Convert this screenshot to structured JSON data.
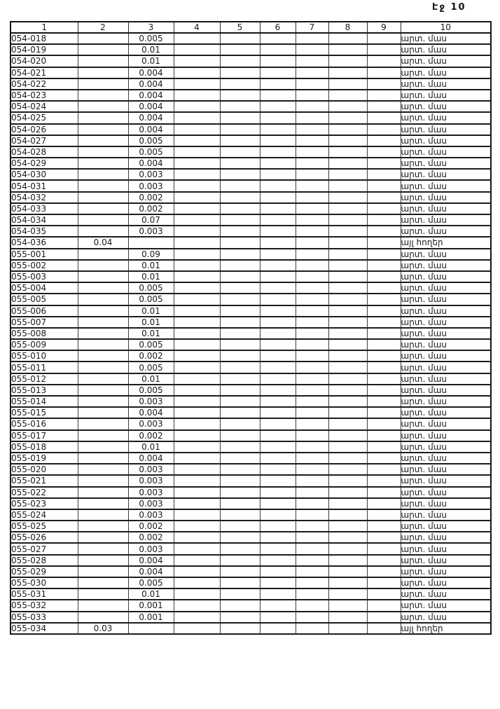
{
  "page": {
    "header_label": "Էջ 10"
  },
  "table": {
    "columns": [
      "1",
      "2",
      "3",
      "4",
      "5",
      "6",
      "7",
      "8",
      "9",
      "10"
    ],
    "rows": [
      {
        "c1": "054-018",
        "c3": "0.005",
        "c10": "արտ. մաս"
      },
      {
        "c1": "054-019",
        "c3": "0.01",
        "c10": "արտ. մաս"
      },
      {
        "c1": "054-020",
        "c3": "0.01",
        "c10": "արտ. մաս"
      },
      {
        "c1": "054-021",
        "c3": "0.004",
        "c10": "արտ. մաս"
      },
      {
        "c1": "054-022",
        "c3": "0.004",
        "c10": "արտ. մաս"
      },
      {
        "c1": "054-023",
        "c3": "0.004",
        "c10": "արտ. մաս"
      },
      {
        "c1": "054-024",
        "c3": "0.004",
        "c10": "արտ. մաս"
      },
      {
        "c1": "054-025",
        "c3": "0.004",
        "c10": "արտ. մաս"
      },
      {
        "c1": "054-026",
        "c3": "0.004",
        "c10": "արտ. մաս"
      },
      {
        "c1": "054-027",
        "c3": "0.005",
        "c10": "արտ. մաս"
      },
      {
        "c1": "054-028",
        "c3": "0.005",
        "c10": "արտ. մաս"
      },
      {
        "c1": "054-029",
        "c3": "0.004",
        "c10": "արտ. մաս"
      },
      {
        "c1": "054-030",
        "c3": "0.003",
        "c10": "արտ. մաս"
      },
      {
        "c1": "054-031",
        "c3": "0.003",
        "c10": "արտ. մաս"
      },
      {
        "c1": "054-032",
        "c3": "0.002",
        "c10": "արտ. մաս"
      },
      {
        "c1": "054-033",
        "c3": "0.002",
        "c10": "արտ. մաս"
      },
      {
        "c1": "054-034",
        "c3": "0.07",
        "c10": "արտ. մաս"
      },
      {
        "c1": "054-035",
        "c3": "0.003",
        "c10": "արտ. մաս"
      },
      {
        "c1": "054-036",
        "c2": "0.04",
        "c10": "այլ հողեր"
      },
      {
        "c1": "055-001",
        "c3": "0.09",
        "c10": "արտ. մաս"
      },
      {
        "c1": "055-002",
        "c3": "0.01",
        "c10": "արտ. մաս"
      },
      {
        "c1": "055-003",
        "c3": "0.01",
        "c10": "արտ. մաս"
      },
      {
        "c1": "055-004",
        "c3": "0.005",
        "c10": "արտ. մաս"
      },
      {
        "c1": "055-005",
        "c3": "0.005",
        "c10": "արտ. մաս"
      },
      {
        "c1": "055-006",
        "c3": "0.01",
        "c10": "արտ. մաս"
      },
      {
        "c1": "055-007",
        "c3": "0.01",
        "c10": "արտ. մաս"
      },
      {
        "c1": "055-008",
        "c3": "0.01",
        "c10": "արտ. մաս"
      },
      {
        "c1": "055-009",
        "c3": "0.005",
        "c10": "արտ. մաս"
      },
      {
        "c1": "055-010",
        "c3": "0.002",
        "c10": "արտ. մաս"
      },
      {
        "c1": "055-011",
        "c3": "0.005",
        "c10": "արտ. մաս"
      },
      {
        "c1": "055-012",
        "c3": "0.01",
        "c10": "արտ. մաս"
      },
      {
        "c1": "055-013",
        "c3": "0.005",
        "c10": "արտ. մաս"
      },
      {
        "c1": "055-014",
        "c3": "0.003",
        "c10": "արտ. մաս"
      },
      {
        "c1": "055-015",
        "c3": "0.004",
        "c10": "արտ. մաս"
      },
      {
        "c1": "055-016",
        "c3": "0.003",
        "c10": "արտ. մաս"
      },
      {
        "c1": "055-017",
        "c3": "0.002",
        "c10": "արտ. մաս"
      },
      {
        "c1": "055-018",
        "c3": "0.01",
        "c10": "արտ. մաս"
      },
      {
        "c1": "055-019",
        "c3": "0.004",
        "c10": "արտ. մաս"
      },
      {
        "c1": "055-020",
        "c3": "0.003",
        "c10": "արտ. մաս"
      },
      {
        "c1": "055-021",
        "c3": "0.003",
        "c10": "արտ. մաս"
      },
      {
        "c1": "055-022",
        "c3": "0.003",
        "c10": "արտ. մաս"
      },
      {
        "c1": "055-023",
        "c3": "0.003",
        "c10": "արտ. մաս"
      },
      {
        "c1": "055-024",
        "c3": "0.003",
        "c10": "արտ. մաս"
      },
      {
        "c1": "055-025",
        "c3": "0.002",
        "c10": "արտ. մաս"
      },
      {
        "c1": "055-026",
        "c3": "0.002",
        "c10": "արտ. մաս"
      },
      {
        "c1": "055-027",
        "c3": "0.003",
        "c10": "արտ. մաս"
      },
      {
        "c1": "055-028",
        "c3": "0.004",
        "c10": "արտ. մաս"
      },
      {
        "c1": "055-029",
        "c3": "0.004",
        "c10": "արտ. մաս"
      },
      {
        "c1": "055-030",
        "c3": "0.005",
        "c10": "արտ. մաս"
      },
      {
        "c1": "055-031",
        "c3": "0.01",
        "c10": "արտ. մաս"
      },
      {
        "c1": "055-032",
        "c3": "0.001",
        "c10": "արտ. մաս"
      },
      {
        "c1": "055-033",
        "c3": "0.001",
        "c10": "արտ. մաս"
      },
      {
        "c1": "055-034",
        "c2": "0.03",
        "c10": "այլ հողեր"
      }
    ]
  }
}
